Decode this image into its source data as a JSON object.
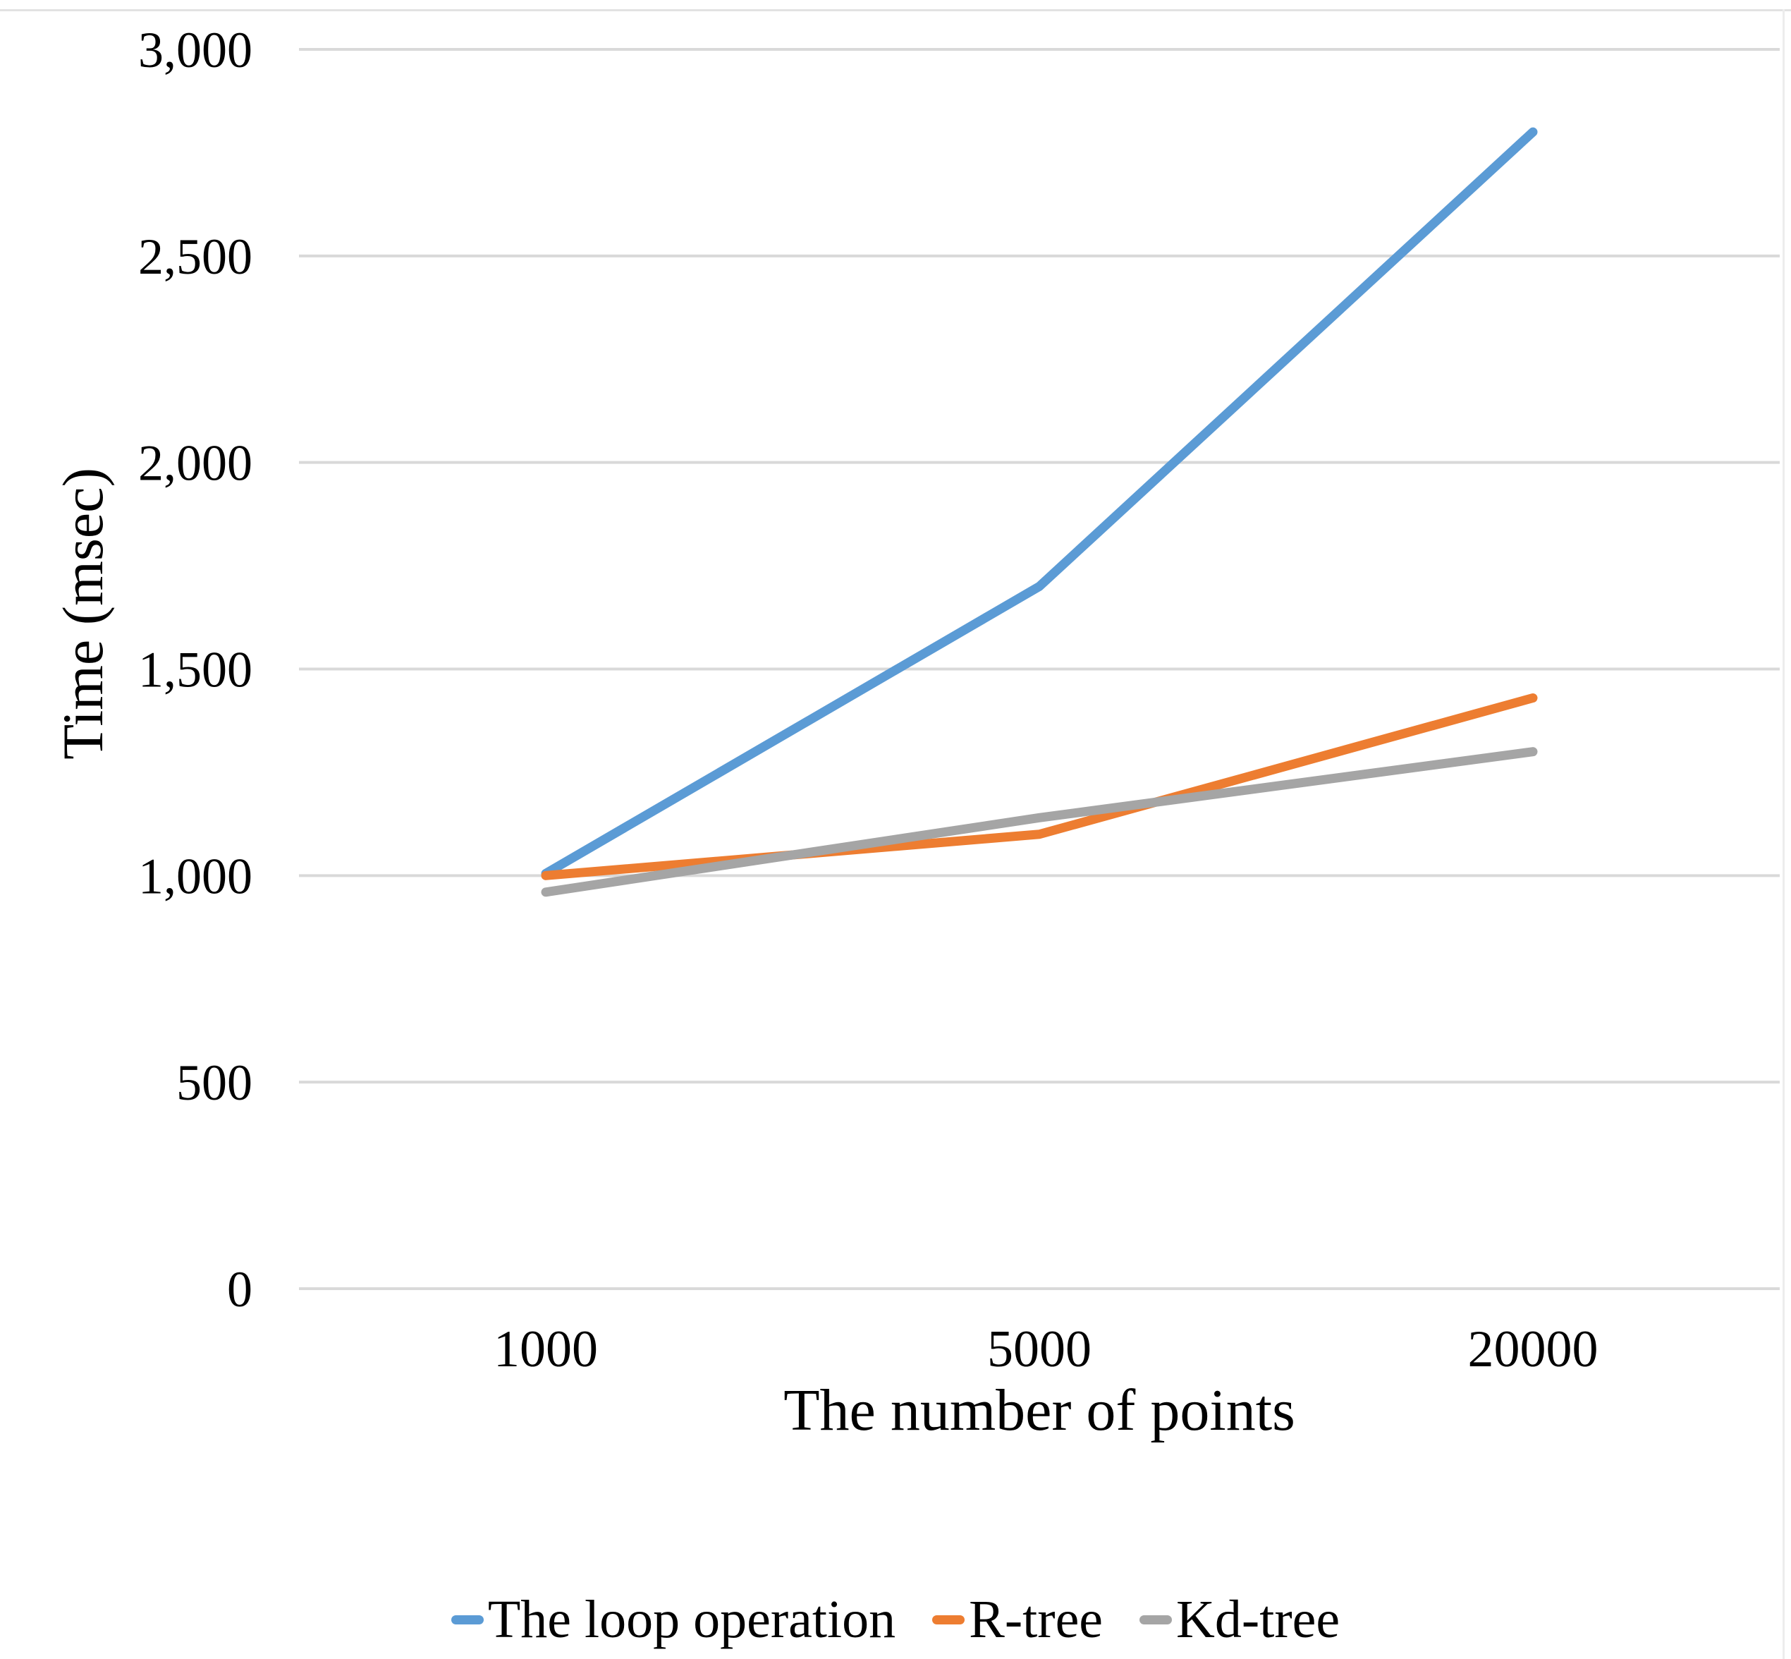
{
  "chart_data": {
    "type": "line",
    "categories": [
      "1000",
      "5000",
      "20000"
    ],
    "series": [
      {
        "name": "The loop operation",
        "color": "#5B9BD5",
        "values": [
          1005,
          1700,
          2800
        ]
      },
      {
        "name": "R-tree",
        "color": "#ED7D31",
        "values": [
          1000,
          1100,
          1430
        ]
      },
      {
        "name": "Kd-tree",
        "color": "#A5A5A5",
        "values": [
          960,
          1140,
          1300
        ]
      }
    ],
    "title": "",
    "xlabel": "The number of points",
    "ylabel": "Time (msec)",
    "ylim": [
      0,
      3000
    ],
    "ytick_step": 500,
    "ytick_labels": [
      "0",
      "500",
      "1,000",
      "1,500",
      "2,000",
      "2,500",
      "3,000"
    ],
    "grid": "horizontal",
    "gridline_color": "#D9D9D9",
    "text_color": "#000000",
    "legend_position": "bottom"
  }
}
